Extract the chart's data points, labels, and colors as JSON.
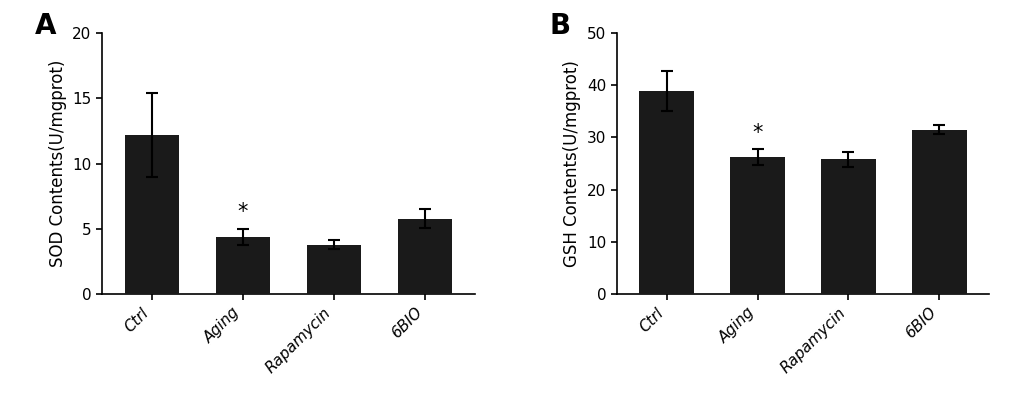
{
  "panel_A": {
    "label": "A",
    "categories": [
      "Ctrl",
      "Aging",
      "Rapamycin",
      "6BIO"
    ],
    "values": [
      12.2,
      4.4,
      3.8,
      5.8
    ],
    "errors": [
      3.2,
      0.6,
      0.35,
      0.7
    ],
    "ylabel": "SOD Contents(U/mgprot)",
    "ylim": [
      0,
      20
    ],
    "yticks": [
      0,
      5,
      10,
      15,
      20
    ],
    "star_index": 1,
    "bar_color": "#1a1a1a",
    "bar_width": 0.6
  },
  "panel_B": {
    "label": "B",
    "categories": [
      "Ctrl",
      "Aging",
      "Rapamycin",
      "6BIO"
    ],
    "values": [
      38.8,
      26.2,
      25.8,
      31.5
    ],
    "errors": [
      3.8,
      1.5,
      1.5,
      0.8
    ],
    "ylabel": "GSH Contents(U/mgprot)",
    "ylim": [
      0,
      50
    ],
    "yticks": [
      0,
      10,
      20,
      30,
      40,
      50
    ],
    "star_index": 1,
    "bar_color": "#1a1a1a",
    "bar_width": 0.6
  },
  "background_color": "#ffffff",
  "tick_fontsize": 11,
  "label_fontsize": 12,
  "panel_label_fontsize": 20,
  "xtick_rotation": 45,
  "xtick_ha": "right"
}
